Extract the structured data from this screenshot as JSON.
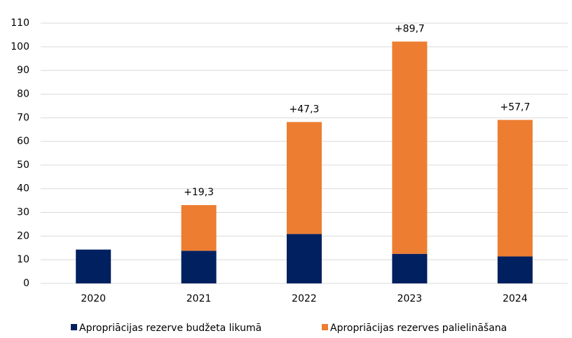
{
  "chart_data": {
    "type": "stacked_bar",
    "categories": [
      "2020",
      "2021",
      "2022",
      "2023",
      "2024"
    ],
    "series": [
      {
        "name": "Apropriācijas rezerve budžeta likumā",
        "color": "#002060",
        "values": [
          14.3,
          13.8,
          20.9,
          12.5,
          11.4
        ]
      },
      {
        "name": "Apropriācijas rezerves palielināšana",
        "color": "#ed7d31",
        "values": [
          null,
          19.3,
          47.3,
          89.7,
          57.7
        ],
        "value_labels": [
          null,
          "+19,3",
          "+47,3",
          "+89,7",
          "+57,7"
        ]
      }
    ],
    "ylim": [
      0,
      110
    ],
    "yticks": [
      0,
      10,
      20,
      30,
      40,
      50,
      60,
      70,
      80,
      90,
      100,
      110
    ],
    "grid": true,
    "legend": "bottom"
  }
}
